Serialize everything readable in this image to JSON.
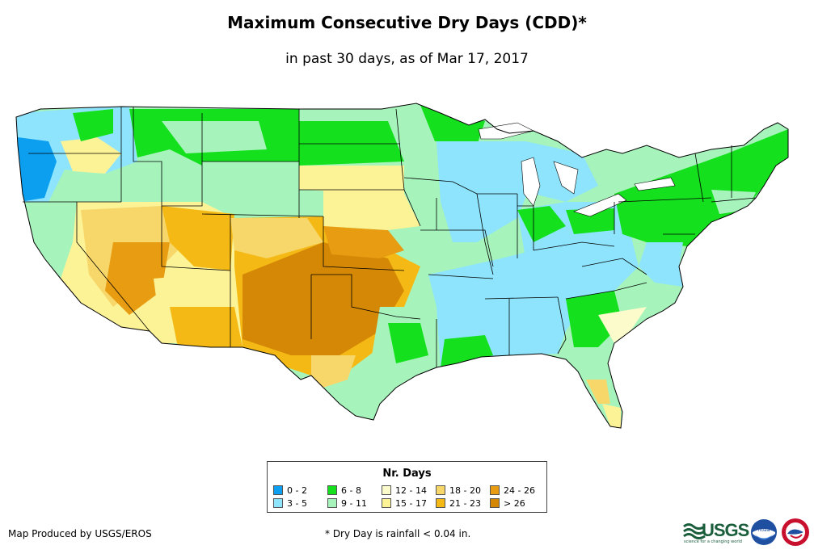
{
  "title": "Maximum Consecutive Dry Days (CDD)*",
  "subtitle": "in past 30 days, as of Mar 17, 2017",
  "legend": {
    "title": "Nr. Days",
    "classes": [
      {
        "label": "0 - 2",
        "color": "#0c9ff0"
      },
      {
        "label": "3 - 5",
        "color": "#8de4fc"
      },
      {
        "label": "6 - 8",
        "color": "#14e01e"
      },
      {
        "label": "9 - 11",
        "color": "#a6f4bc"
      },
      {
        "label": "12 - 14",
        "color": "#fbfbcb"
      },
      {
        "label": "15 - 17",
        "color": "#fcf396"
      },
      {
        "label": "18 - 20",
        "color": "#f7d76a"
      },
      {
        "label": "21 - 23",
        "color": "#f5b915"
      },
      {
        "label": "24 - 26",
        "color": "#e89c12"
      },
      {
        "label": "> 26",
        "color": "#d58806"
      }
    ]
  },
  "credit": "Map Produced by USGS/EROS",
  "footnote": "* Dry Day is rainfall < 0.04 in.",
  "logos": {
    "usgs_text": "USGS",
    "usgs_tagline": "science for a changing world",
    "noaa_text": "noaa"
  }
}
